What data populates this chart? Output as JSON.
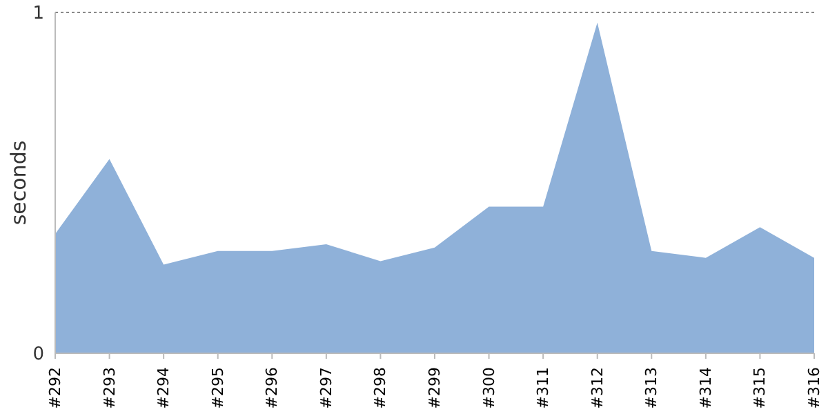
{
  "chart_data": {
    "type": "area",
    "ylabel": "seconds",
    "categories": [
      "#292",
      "#293",
      "#294",
      "#295",
      "#296",
      "#297",
      "#298",
      "#299",
      "#300",
      "#311",
      "#312",
      "#313",
      "#314",
      "#315",
      "#316"
    ],
    "series": [
      {
        "color": "#8fb1d9",
        "values": [
          0.35,
          0.57,
          0.26,
          0.3,
          0.3,
          0.32,
          0.27,
          0.31,
          0.43,
          0.43,
          0.97,
          0.3,
          0.28,
          0.37,
          0.28
        ]
      }
    ],
    "ylim": [
      0,
      1
    ],
    "yticks": [
      0,
      1
    ],
    "ref_lines": [
      {
        "axis": "y",
        "value": 1,
        "color": "#888888",
        "line_style": "dashed"
      }
    ],
    "legend": false
  }
}
